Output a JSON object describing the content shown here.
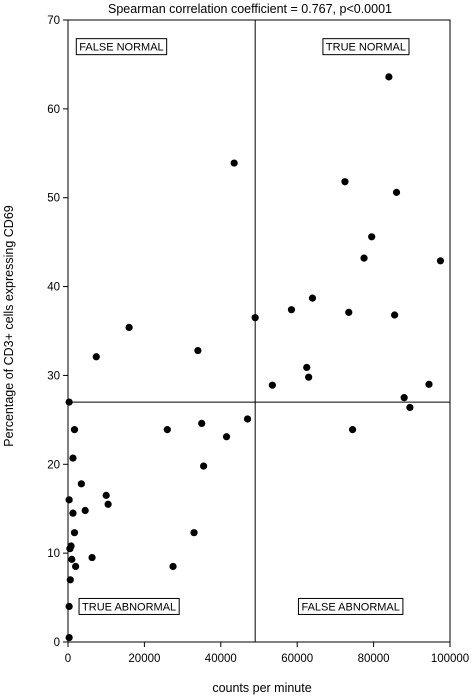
{
  "chart_data": {
    "type": "scatter",
    "title": "Spearman correlation coefficient = 0.767, p<0.0001",
    "xlabel": "counts per minute",
    "ylabel": "Percentage of CD3+ cells expressing CD69",
    "xlim": [
      0,
      100000
    ],
    "ylim": [
      0,
      70
    ],
    "x_ticks": [
      0,
      20000,
      40000,
      60000,
      80000,
      100000
    ],
    "x_tick_labels": [
      "0",
      "20000",
      "40000",
      "60000",
      "80000",
      "100000"
    ],
    "y_ticks": [
      0,
      10,
      20,
      30,
      40,
      50,
      60,
      70
    ],
    "y_tick_labels": [
      "0",
      "10",
      "20",
      "30",
      "40",
      "50",
      "60",
      "70"
    ],
    "grid": false,
    "cutoff_x": 49000,
    "cutoff_y": 27,
    "quadrant_labels": [
      {
        "id": "false-normal",
        "text": "FALSE NORMAL",
        "x": 14000,
        "y": 67
      },
      {
        "id": "true-normal",
        "text": "TRUE NORMAL",
        "x": 78000,
        "y": 67
      },
      {
        "id": "true-abnormal",
        "text": "TRUE ABNORMAL",
        "x": 16000,
        "y": 4
      },
      {
        "id": "false-abnormal",
        "text": "FALSE ABNORMAL",
        "x": 74000,
        "y": 4
      }
    ],
    "series": [
      {
        "marker_color": "#000000",
        "points": [
          [
            300,
            0.5
          ],
          [
            300,
            4
          ],
          [
            300,
            16
          ],
          [
            300,
            27
          ],
          [
            500,
            10.5
          ],
          [
            600,
            7
          ],
          [
            800,
            10.8
          ],
          [
            1000,
            9.3
          ],
          [
            1300,
            20.7
          ],
          [
            1300,
            14.5
          ],
          [
            1700,
            12.3
          ],
          [
            1700,
            23.9
          ],
          [
            2000,
            8.5
          ],
          [
            3500,
            17.8
          ],
          [
            4500,
            14.8
          ],
          [
            6300,
            9.5
          ],
          [
            7400,
            32.1
          ],
          [
            10000,
            16.5
          ],
          [
            10500,
            15.5
          ],
          [
            16000,
            35.4
          ],
          [
            26000,
            23.9
          ],
          [
            27500,
            8.5
          ],
          [
            33000,
            12.3
          ],
          [
            34000,
            32.8
          ],
          [
            35000,
            24.6
          ],
          [
            35500,
            19.8
          ],
          [
            41500,
            23.1
          ],
          [
            43500,
            53.9
          ],
          [
            47000,
            25.1
          ],
          [
            49000,
            36.5
          ],
          [
            53500,
            28.9
          ],
          [
            58500,
            37.4
          ],
          [
            62500,
            30.9
          ],
          [
            63000,
            29.8
          ],
          [
            64000,
            38.7
          ],
          [
            72500,
            51.8
          ],
          [
            73500,
            37.1
          ],
          [
            74500,
            23.9
          ],
          [
            77500,
            43.2
          ],
          [
            79500,
            45.6
          ],
          [
            84000,
            63.6
          ],
          [
            85500,
            36.8
          ],
          [
            86000,
            50.6
          ],
          [
            88000,
            27.5
          ],
          [
            89500,
            26.4
          ],
          [
            94500,
            29.0
          ],
          [
            97500,
            42.9
          ]
        ]
      }
    ]
  }
}
